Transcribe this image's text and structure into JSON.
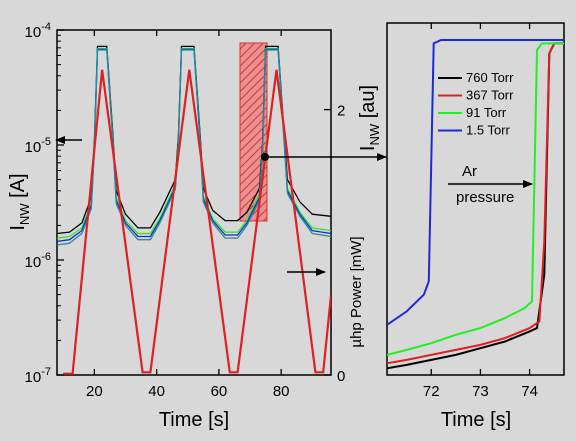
{
  "colors": {
    "background": "#d8d8d8",
    "highlight": "#e04040",
    "black": "#000000",
    "red": "#e02020",
    "green": "#22ee22",
    "blue": "#1a2ad8",
    "teal": "#2a8aa0"
  },
  "chart_data": [
    {
      "type": "line",
      "panel": "left",
      "xlabel": "Time [s]",
      "ylabel_main": "I",
      "ylabel_sub": "NW",
      "ylabel_unit": " [A]",
      "y2label": "µhp Power [mW]",
      "xlim": [
        8,
        96
      ],
      "ylim_log": [
        1e-07,
        0.0001
      ],
      "y2lim": [
        0,
        2.6
      ],
      "xticks": [
        20,
        40,
        60,
        80
      ],
      "yticks": [
        {
          "value": 1e-07,
          "base": "10",
          "exp": "-7"
        },
        {
          "value": 1e-06,
          "base": "10",
          "exp": "-6"
        },
        {
          "value": 1e-05,
          "base": "10",
          "exp": "-5"
        },
        {
          "value": 0.0001,
          "base": "10",
          "exp": "-4"
        }
      ],
      "y2ticks": [
        0,
        2
      ],
      "series": [
        {
          "color": "black",
          "x": [
            8,
            12,
            16,
            19,
            20,
            21,
            24,
            26,
            27,
            30,
            34,
            38,
            41,
            46,
            47,
            48,
            52,
            54,
            55,
            58,
            62,
            66,
            69,
            73,
            74,
            75,
            79,
            81,
            82,
            86,
            90,
            96
          ],
          "y": [
            1.7e-06,
            1.75e-06,
            2.1e-06,
            3.5e-06,
            1.1e-05,
            7.2e-05,
            7.2e-05,
            1.2e-05,
            4e-06,
            2.5e-06,
            1.9e-06,
            1.9e-06,
            2.6e-06,
            5e-06,
            1.2e-05,
            7.2e-05,
            7.2e-05,
            1.2e-05,
            4.2e-06,
            2.7e-06,
            2.2e-06,
            2.2e-06,
            2.6e-06,
            4.2e-06,
            1e-05,
            7.2e-05,
            7.2e-05,
            1.2e-05,
            5e-06,
            3.2e-06,
            2.5e-06,
            2.4e-06
          ]
        },
        {
          "color": "green",
          "x": [
            8,
            12,
            16,
            19,
            20,
            21,
            24,
            26,
            27,
            30,
            34,
            38,
            41,
            46,
            47,
            48,
            52,
            54,
            55,
            58,
            62,
            66,
            69,
            73,
            74,
            75,
            79,
            81,
            82,
            86,
            90,
            96
          ],
          "y": [
            1.55e-06,
            1.6e-06,
            1.9e-06,
            3.1e-06,
            1e-05,
            6.9e-05,
            6.9e-05,
            1.1e-05,
            3.5e-06,
            2.2e-06,
            1.7e-06,
            1.7e-06,
            2.3e-06,
            4.5e-06,
            1.1e-05,
            6.9e-05,
            6.9e-05,
            1.1e-05,
            3.6e-06,
            2.3e-06,
            1.75e-06,
            1.75e-06,
            2.2e-06,
            3.7e-06,
            9e-06,
            6.9e-05,
            6.9e-05,
            1.1e-05,
            4.2e-06,
            2.6e-06,
            1.9e-06,
            1.8e-06
          ]
        },
        {
          "color": "blue",
          "x": [
            8,
            12,
            16,
            19,
            20,
            21,
            24,
            26,
            27,
            30,
            34,
            38,
            41,
            46,
            47,
            48,
            52,
            54,
            55,
            58,
            62,
            66,
            69,
            73,
            74,
            75,
            79,
            81,
            82,
            86,
            90,
            96
          ],
          "y": [
            1.45e-06,
            1.5e-06,
            1.8e-06,
            3e-06,
            9.5e-06,
            6.8e-05,
            6.8e-05,
            1.05e-05,
            3.3e-06,
            2.1e-06,
            1.6e-06,
            1.6e-06,
            2.2e-06,
            4.3e-06,
            1.05e-05,
            6.8e-05,
            6.8e-05,
            1.05e-05,
            3.4e-06,
            2.2e-06,
            1.65e-06,
            1.65e-06,
            2.1e-06,
            3.5e-06,
            8.5e-06,
            6.8e-05,
            6.8e-05,
            1.05e-05,
            4e-06,
            2.5e-06,
            1.8e-06,
            1.7e-06
          ]
        },
        {
          "color": "teal",
          "x": [
            8,
            12,
            16,
            19,
            20,
            21,
            24,
            26,
            27,
            30,
            34,
            38,
            41,
            46,
            47,
            48,
            52,
            54,
            55,
            58,
            62,
            66,
            69,
            73,
            74,
            75,
            79,
            81,
            82,
            86,
            90,
            96
          ],
          "y": [
            1.35e-06,
            1.4e-06,
            1.7e-06,
            2.8e-06,
            9e-06,
            6.7e-05,
            6.7e-05,
            1e-05,
            3.1e-06,
            2e-06,
            1.5e-06,
            1.5e-06,
            2.1e-06,
            4.1e-06,
            1e-05,
            6.7e-05,
            6.7e-05,
            1e-05,
            3.2e-06,
            2.1e-06,
            1.55e-06,
            1.55e-06,
            2e-06,
            3.3e-06,
            8e-06,
            6.7e-05,
            6.7e-05,
            1e-05,
            3.8e-06,
            2.4e-06,
            1.7e-06,
            1.6e-06
          ]
        },
        {
          "color": "red",
          "axis": "y2",
          "x": [
            10,
            13,
            22.5,
            35.5,
            38,
            50.5,
            63.5,
            66,
            78.5,
            91,
            93.5,
            96
          ],
          "y": [
            0.01,
            0.01,
            2.3,
            0.02,
            0.02,
            2.3,
            0.02,
            0.02,
            2.3,
            0.02,
            0.02,
            0.6
          ]
        }
      ]
    },
    {
      "type": "line",
      "panel": "right",
      "xlabel": "Time [s]",
      "ylabel_main": "I",
      "ylabel_sub": "NW",
      "ylabel_unit": " [au]",
      "xlim": [
        71.1,
        74.7
      ],
      "xticks": [
        72,
        73,
        74
      ],
      "annotation": [
        "Ar",
        "pressure"
      ],
      "legend_position": "top-left",
      "legend": [
        {
          "label": "760 Torr",
          "color": "black"
        },
        {
          "label": "367 Torr",
          "color": "red"
        },
        {
          "label": "91 Torr",
          "color": "green"
        },
        {
          "label": "1.5 Torr",
          "color": "blue"
        }
      ],
      "series": [
        {
          "color": "black",
          "x": [
            71.1,
            71.5,
            72.0,
            72.5,
            73.0,
            73.5,
            74.0,
            74.15,
            74.3,
            74.4,
            74.5,
            74.7
          ],
          "y": [
            0.02,
            0.03,
            0.045,
            0.06,
            0.08,
            0.1,
            0.13,
            0.14,
            0.3,
            0.96,
            0.99,
            0.99
          ]
        },
        {
          "color": "red",
          "x": [
            71.1,
            71.5,
            72.0,
            72.5,
            73.0,
            73.5,
            74.0,
            74.2,
            74.3,
            74.4,
            74.5,
            74.7
          ],
          "y": [
            0.035,
            0.045,
            0.06,
            0.075,
            0.09,
            0.11,
            0.14,
            0.16,
            0.4,
            0.96,
            0.99,
            0.99
          ]
        },
        {
          "color": "green",
          "x": [
            71.1,
            71.5,
            72.0,
            72.5,
            73.0,
            73.5,
            73.9,
            74.05,
            74.15,
            74.25,
            74.5,
            74.7
          ],
          "y": [
            0.06,
            0.075,
            0.095,
            0.12,
            0.14,
            0.17,
            0.2,
            0.22,
            0.97,
            0.99,
            0.99,
            0.99
          ]
        },
        {
          "color": "blue",
          "x": [
            71.1,
            71.5,
            71.85,
            71.95,
            72.05,
            72.2,
            72.5,
            73.0,
            73.5,
            74.0,
            74.7
          ],
          "y": [
            0.15,
            0.19,
            0.24,
            0.28,
            0.99,
            1.0,
            1.0,
            1.0,
            1.0,
            1.0,
            1.0
          ]
        }
      ]
    }
  ]
}
